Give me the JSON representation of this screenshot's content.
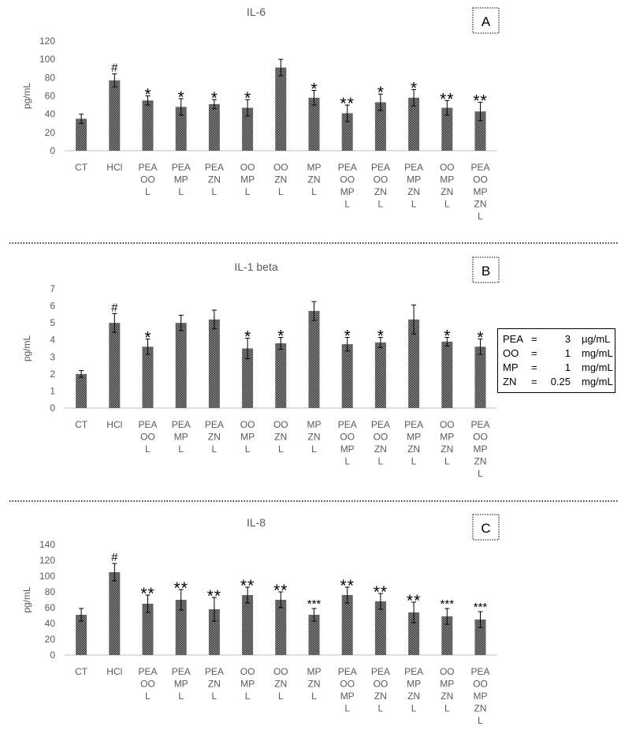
{
  "chart_data": [
    {
      "type": "bar",
      "panel": "A",
      "title": "IL-6",
      "ylabel": "pg/mL",
      "ylim": [
        0,
        120
      ],
      "yticks": [
        0,
        20,
        40,
        60,
        80,
        100,
        120
      ],
      "categories": [
        [
          "CT"
        ],
        [
          "HCl"
        ],
        [
          "PEA",
          "OO",
          "L"
        ],
        [
          "PEA",
          "MP",
          "L"
        ],
        [
          "PEA",
          "ZN",
          "L"
        ],
        [
          "OO",
          "MP",
          "L"
        ],
        [
          "OO",
          "ZN",
          "L"
        ],
        [
          "MP",
          "ZN",
          "L"
        ],
        [
          "PEA",
          "OO",
          "MP",
          "L"
        ],
        [
          "PEA",
          "OO",
          "ZN",
          "L"
        ],
        [
          "PEA",
          "MP",
          "ZN",
          "L"
        ],
        [
          "OO",
          "MP",
          "ZN",
          "L"
        ],
        [
          "PEA",
          "OO",
          "MP",
          "ZN",
          "L"
        ]
      ],
      "values": [
        35,
        77,
        55,
        48,
        51,
        47,
        91,
        58,
        41,
        53,
        58,
        47,
        43
      ],
      "errors": [
        5,
        7,
        5,
        9,
        5,
        9,
        9,
        8,
        9,
        9,
        9,
        8,
        10
      ],
      "significance": [
        "",
        "#",
        "*",
        "*",
        "*",
        "*",
        "",
        "*",
        "**",
        "*",
        "*",
        "**",
        "**"
      ],
      "grid": false,
      "legend": "none"
    },
    {
      "type": "bar",
      "panel": "B",
      "title": "IL-1 beta",
      "ylabel": "pg/mL",
      "ylim": [
        0,
        7
      ],
      "yticks": [
        0,
        1,
        2,
        3,
        4,
        5,
        6,
        7
      ],
      "categories": [
        [
          "CT"
        ],
        [
          "HCl"
        ],
        [
          "PEA",
          "OO",
          "L"
        ],
        [
          "PEA",
          "MP",
          "L"
        ],
        [
          "PEA",
          "ZN",
          "L"
        ],
        [
          "OO",
          "MP",
          "L"
        ],
        [
          "OO",
          "ZN",
          "L"
        ],
        [
          "MP",
          "ZN",
          "L"
        ],
        [
          "PEA",
          "OO",
          "MP",
          "L"
        ],
        [
          "PEA",
          "OO",
          "ZN",
          "L"
        ],
        [
          "PEA",
          "MP",
          "ZN",
          "L"
        ],
        [
          "OO",
          "MP",
          "ZN",
          "L"
        ],
        [
          "PEA",
          "OO",
          "MP",
          "ZN",
          "L"
        ]
      ],
      "values": [
        2.0,
        5.0,
        3.6,
        5.0,
        5.2,
        3.5,
        3.8,
        5.7,
        3.75,
        3.85,
        5.2,
        3.9,
        3.6
      ],
      "errors": [
        0.2,
        0.55,
        0.45,
        0.45,
        0.55,
        0.6,
        0.35,
        0.55,
        0.4,
        0.3,
        0.85,
        0.25,
        0.45
      ],
      "significance": [
        "",
        "#",
        "*",
        "",
        "",
        "*",
        "*",
        "",
        "*",
        "*",
        "",
        "*",
        "*"
      ],
      "grid": false,
      "legend": "none"
    },
    {
      "type": "bar",
      "panel": "C",
      "title": "IL-8",
      "ylabel": "pg/mL",
      "ylim": [
        0,
        140
      ],
      "yticks": [
        0,
        20,
        40,
        60,
        80,
        100,
        120,
        140
      ],
      "categories": [
        [
          "CT"
        ],
        [
          "HCl"
        ],
        [
          "PEA",
          "OO",
          "L"
        ],
        [
          "PEA",
          "MP",
          "L"
        ],
        [
          "PEA",
          "ZN",
          "L"
        ],
        [
          "OO",
          "MP",
          "L"
        ],
        [
          "OO",
          "ZN",
          "L"
        ],
        [
          "MP",
          "ZN",
          "L"
        ],
        [
          "PEA",
          "OO",
          "MP",
          "L"
        ],
        [
          "PEA",
          "OO",
          "ZN",
          "L"
        ],
        [
          "PEA",
          "MP",
          "ZN",
          "L"
        ],
        [
          "OO",
          "MP",
          "ZN",
          "L"
        ],
        [
          "PEA",
          "OO",
          "MP",
          "ZN",
          "L"
        ]
      ],
      "values": [
        51,
        105,
        65,
        70,
        58,
        76,
        70,
        51,
        76,
        68,
        54,
        49,
        45
      ],
      "errors": [
        8,
        11,
        11,
        13,
        15,
        10,
        10,
        8,
        10,
        10,
        13,
        10,
        10
      ],
      "significance": [
        "",
        "#",
        "**",
        "**",
        "**",
        "**",
        "**",
        "***",
        "**",
        "**",
        "**",
        "***",
        "***"
      ],
      "grid": false,
      "legend": "none"
    }
  ],
  "legend_box": {
    "rows": [
      {
        "name": "PEA",
        "eq": "=",
        "value": "3",
        "unit": "µg/mL"
      },
      {
        "name": "OO",
        "eq": "=",
        "value": "1",
        "unit": "mg/mL"
      },
      {
        "name": "MP",
        "eq": "=",
        "value": "1",
        "unit": "mg/mL"
      },
      {
        "name": "ZN",
        "eq": "=",
        "value": "0.25",
        "unit": "mg/mL"
      }
    ]
  },
  "colors": {
    "bar_fill": "#8c8c8c",
    "bar_dots": "#3a3a3a",
    "axis": "#bfbfbf",
    "text": "#595959",
    "annotation": "#000000"
  }
}
